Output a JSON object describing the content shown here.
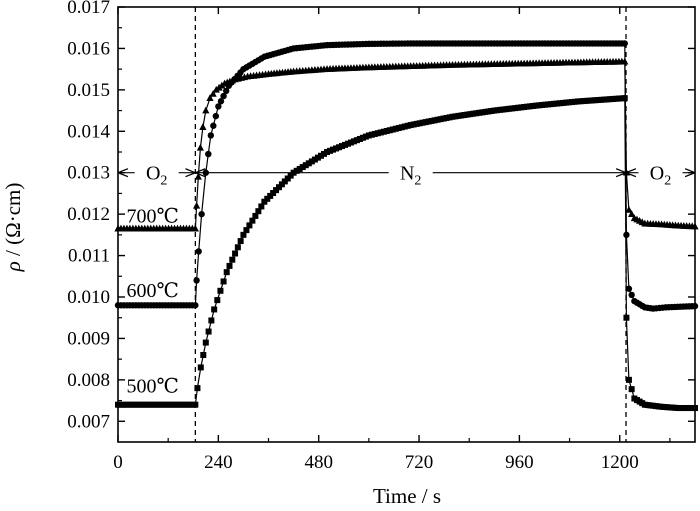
{
  "chart_data": {
    "type": "scatter",
    "xlabel": "Time / s",
    "ylabel": "ρ / (Ω·cm)",
    "xlim": [
      0,
      1380
    ],
    "ylim": [
      0.0065,
      0.017
    ],
    "xticks": [
      0,
      240,
      480,
      720,
      960,
      1200
    ],
    "yticks": [
      0.007,
      0.008,
      0.009,
      0.01,
      0.011,
      0.012,
      0.013,
      0.014,
      0.015,
      0.016,
      0.017
    ],
    "xtick_labels": [
      "0",
      "240",
      "480",
      "720",
      "960",
      "1200"
    ],
    "ytick_labels": [
      "0.007",
      "0.008",
      "0.009",
      "0.010",
      "0.011",
      "0.012",
      "0.013",
      "0.014",
      "0.015",
      "0.016",
      "0.017"
    ],
    "grid": false,
    "switch_times": [
      185,
      1215
    ],
    "regions": [
      {
        "label": "O",
        "sub": "2",
        "x_from": 0,
        "x_to": 185,
        "y": 0.013
      },
      {
        "label": "N",
        "sub": "2",
        "x_from": 185,
        "x_to": 1215,
        "y": 0.013
      },
      {
        "label": "O",
        "sub": "2",
        "x_from": 1215,
        "x_to": 1380,
        "y": 0.013
      }
    ],
    "series": [
      {
        "label": "700℃",
        "marker": "triangle",
        "label_at": [
          0.0118,
          25
        ],
        "points": [
          [
            0,
            0.01165
          ],
          [
            185,
            0.01165
          ],
          [
            188,
            0.0122
          ],
          [
            192,
            0.0129
          ],
          [
            197,
            0.0136
          ],
          [
            203,
            0.0141
          ],
          [
            210,
            0.0145
          ],
          [
            220,
            0.0148
          ],
          [
            235,
            0.015
          ],
          [
            255,
            0.01515
          ],
          [
            280,
            0.01525
          ],
          [
            310,
            0.01532
          ],
          [
            360,
            0.01538
          ],
          [
            420,
            0.01544
          ],
          [
            500,
            0.0155
          ],
          [
            600,
            0.01554
          ],
          [
            700,
            0.01557
          ],
          [
            800,
            0.0156
          ],
          [
            900,
            0.01562
          ],
          [
            1000,
            0.01564
          ],
          [
            1100,
            0.01566
          ],
          [
            1212,
            0.01568
          ],
          [
            1216,
            0.013
          ],
          [
            1222,
            0.0121
          ],
          [
            1235,
            0.0119
          ],
          [
            1260,
            0.01177
          ],
          [
            1300,
            0.01175
          ],
          [
            1340,
            0.01172
          ],
          [
            1380,
            0.0117
          ]
        ]
      },
      {
        "label": "600℃",
        "marker": "circle",
        "label_at": [
          0.01,
          25
        ],
        "points": [
          [
            0,
            0.0098
          ],
          [
            185,
            0.0098
          ],
          [
            188,
            0.0104
          ],
          [
            193,
            0.0111
          ],
          [
            200,
            0.012
          ],
          [
            210,
            0.013
          ],
          [
            222,
            0.0139
          ],
          [
            240,
            0.0146
          ],
          [
            265,
            0.0151
          ],
          [
            300,
            0.0155
          ],
          [
            350,
            0.0158
          ],
          [
            420,
            0.016
          ],
          [
            500,
            0.01608
          ],
          [
            600,
            0.01611
          ],
          [
            700,
            0.01612
          ],
          [
            800,
            0.01612
          ],
          [
            900,
            0.01612
          ],
          [
            1000,
            0.01612
          ],
          [
            1100,
            0.01612
          ],
          [
            1212,
            0.01612
          ],
          [
            1216,
            0.0115
          ],
          [
            1222,
            0.0102
          ],
          [
            1235,
            0.0099
          ],
          [
            1260,
            0.00975
          ],
          [
            1280,
            0.00972
          ],
          [
            1310,
            0.00975
          ],
          [
            1380,
            0.00978
          ]
        ]
      },
      {
        "label": "500℃",
        "marker": "square",
        "label_at": [
          0.0077,
          25
        ],
        "points": [
          [
            0,
            0.0074
          ],
          [
            185,
            0.0074
          ],
          [
            190,
            0.0078
          ],
          [
            198,
            0.0083
          ],
          [
            210,
            0.0089
          ],
          [
            230,
            0.0097
          ],
          [
            260,
            0.0106
          ],
          [
            300,
            0.0115
          ],
          [
            350,
            0.0123
          ],
          [
            420,
            0.013
          ],
          [
            500,
            0.0135
          ],
          [
            600,
            0.0139
          ],
          [
            700,
            0.01415
          ],
          [
            800,
            0.01435
          ],
          [
            900,
            0.0145
          ],
          [
            1000,
            0.01462
          ],
          [
            1100,
            0.01472
          ],
          [
            1212,
            0.0148
          ],
          [
            1216,
            0.0095
          ],
          [
            1222,
            0.008
          ],
          [
            1235,
            0.00755
          ],
          [
            1260,
            0.0074
          ],
          [
            1300,
            0.00735
          ],
          [
            1340,
            0.00732
          ],
          [
            1380,
            0.00732
          ]
        ]
      }
    ]
  }
}
